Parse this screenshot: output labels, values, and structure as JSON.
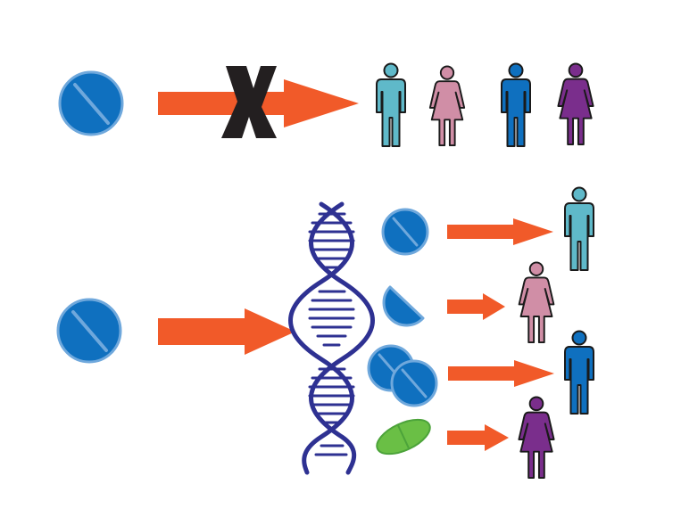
{
  "colors": {
    "background": "#ffffff",
    "arrow": "#f15a29",
    "cross": "#231f20",
    "pill_fill": "#0f70bf",
    "pill_edge": "#6fa8dc",
    "dna": "#2e3192",
    "green_pill": "#6abf45",
    "green_pill_edge": "#4ca33a",
    "person_light_blue": "#5fb9c9",
    "person_pink": "#d08ea6",
    "person_blue": "#0f70bf",
    "person_purple": "#7a2e8c",
    "person_outline": "#1a1a1a"
  },
  "diagram": {
    "top_row": {
      "description_icon": "pill-icon",
      "blocked_marker": "X",
      "people": [
        "man",
        "woman",
        "man",
        "woman"
      ]
    },
    "bottom_row": {
      "source_icon": "pill-icon",
      "middle_icon": "dna-icon",
      "doses": [
        "full-pill",
        "partial-pill",
        "double-pill",
        "alternative-green-pill"
      ],
      "people": [
        "man",
        "woman",
        "man",
        "woman"
      ]
    }
  }
}
